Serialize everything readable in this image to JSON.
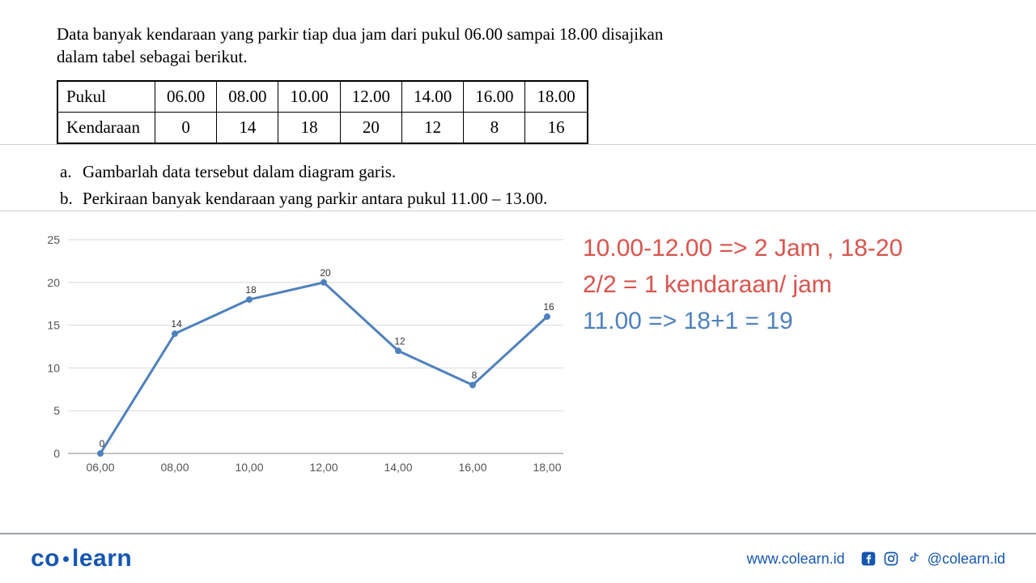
{
  "problem": {
    "intro_line1": "Data banyak kendaraan yang parkir tiap dua jam dari pukul 06.00 sampai 18.00 disajikan",
    "intro_line2": "dalam tabel sebagai berikut.",
    "table": {
      "row1_label": "Pukul",
      "row2_label": "Kendaraan",
      "times": [
        "06.00",
        "08.00",
        "10.00",
        "12.00",
        "14.00",
        "16.00",
        "18.00"
      ],
      "values": [
        "0",
        "14",
        "18",
        "20",
        "12",
        "8",
        "16"
      ]
    },
    "sub_a_letter": "a.",
    "sub_a_text": "Gambarlah data tersebut dalam diagram garis.",
    "sub_b_letter": "b.",
    "sub_b_text": "Perkiraan banyak kendaraan yang parkir antara pukul 11.00 – 13.00."
  },
  "chart": {
    "type": "line",
    "x_categories": [
      "06,00",
      "08,00",
      "10,00",
      "12,00",
      "14,00",
      "16,00",
      "18,00"
    ],
    "y_values": [
      0,
      14,
      18,
      20,
      12,
      8,
      16
    ],
    "y_ticks": [
      0,
      5,
      10,
      15,
      20,
      25
    ],
    "ylim": [
      0,
      25
    ],
    "line_color": "#4f81bd",
    "line_width": 3,
    "marker_color": "#4f81bd",
    "marker_radius": 4,
    "grid_color": "#d9d9d9",
    "axis_color": "#888888",
    "background_color": "#ffffff",
    "label_fontsize": 14,
    "point_label_fontsize": 12
  },
  "solution": {
    "line1": "10.00-12.00 => 2 Jam , 18-20",
    "line2": "2/2 = 1 kendaraan/ jam",
    "line3": "11.00 => 18+1 = 19",
    "colors": {
      "red": "#d9544d",
      "blue": "#4f81bd"
    }
  },
  "footer": {
    "logo_left": "co",
    "logo_right": "learn",
    "url": "www.colearn.id",
    "handle": "@colearn.id"
  }
}
